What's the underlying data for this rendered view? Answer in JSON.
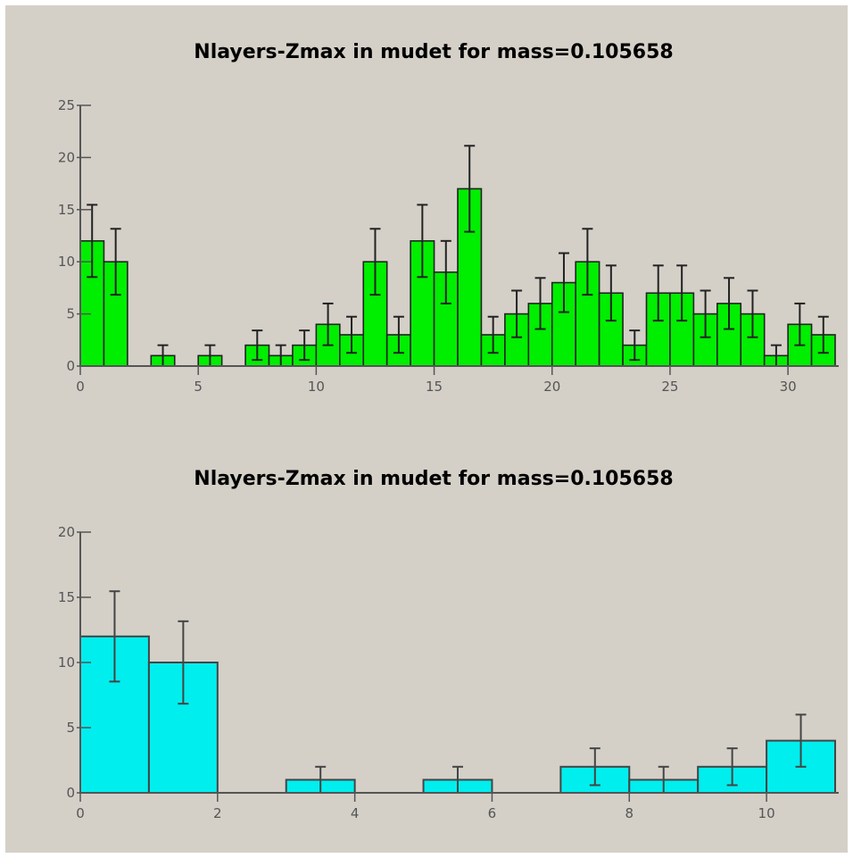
{
  "chart_data": [
    {
      "type": "bar",
      "title": "Nlayers-Zmax in mudet for mass=0.105658",
      "bin_width": 1,
      "x": [
        0,
        1,
        2,
        3,
        4,
        5,
        6,
        7,
        8,
        9,
        10,
        11,
        12,
        13,
        14,
        15,
        16,
        17,
        18,
        19,
        20,
        21,
        22,
        23,
        24,
        25,
        26,
        27,
        28,
        29,
        30,
        31
      ],
      "values": [
        12,
        10,
        0,
        1,
        0,
        1,
        0,
        2,
        1,
        2,
        4,
        3,
        10,
        3,
        12,
        9,
        17,
        3,
        5,
        6,
        8,
        10,
        7,
        2,
        7,
        7,
        5,
        6,
        5,
        1,
        4,
        3
      ],
      "xlim": [
        0,
        32
      ],
      "ylim": [
        0,
        25
      ],
      "xticks": [
        0,
        5,
        10,
        15,
        20,
        25,
        30
      ],
      "yticks": [
        0,
        5,
        10,
        15,
        20,
        25
      ],
      "error_bars": "sqrt",
      "color": "#00ee00"
    },
    {
      "type": "bar",
      "title": "Nlayers-Zmax in mudet for mass=0.105658",
      "bin_width": 1,
      "x": [
        0,
        1,
        2,
        3,
        4,
        5,
        6,
        7,
        8,
        9,
        10
      ],
      "values": [
        12,
        10,
        0,
        1,
        0,
        1,
        0,
        2,
        1,
        2,
        4
      ],
      "xlim": [
        0,
        11
      ],
      "ylim": [
        0,
        20
      ],
      "xticks": [
        0,
        2,
        4,
        6,
        8,
        10
      ],
      "yticks": [
        0,
        5,
        10,
        15,
        20
      ],
      "error_bars": "sqrt",
      "color": "#00eeee"
    }
  ]
}
